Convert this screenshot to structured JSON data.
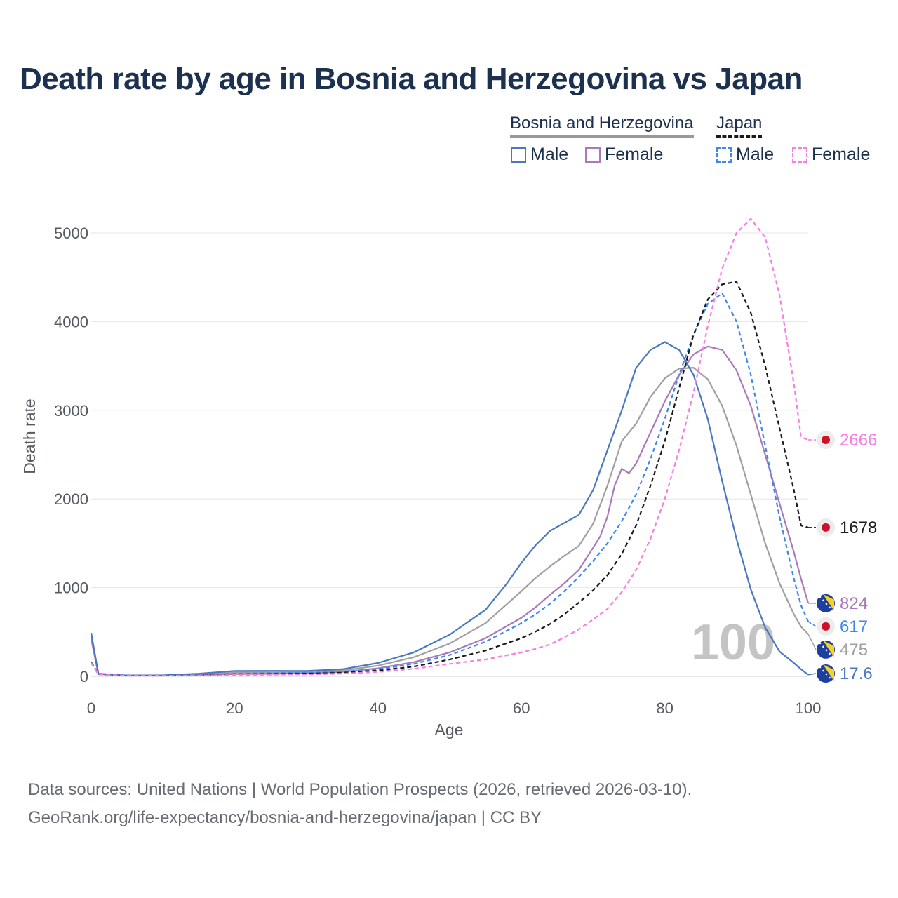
{
  "title": "Death rate by age in Bosnia and Herzegovina vs Japan",
  "legend": {
    "groups": [
      {
        "name": "Bosnia and Herzegovina",
        "color": "#888888",
        "style": "solid"
      },
      {
        "name": "Japan",
        "color": "#1a1a1a",
        "style": "dashed"
      }
    ],
    "items": [
      {
        "label": "Male",
        "color": "#4a79c0",
        "style": "solid"
      },
      {
        "label": "Female",
        "color": "#a97ab8",
        "style": "solid"
      },
      {
        "label": "Male",
        "color": "#3d88e8",
        "style": "dashed"
      },
      {
        "label": "Female",
        "color": "#f57ee8",
        "style": "dashed"
      }
    ]
  },
  "source": {
    "line1": "Data sources: United Nations | World Population Prospects (2026, retrieved 2026-03-10).",
    "line2": "GeoRank.org/life-expectancy/bosnia-and-herzegovina/japan | CC BY"
  },
  "chart_data": {
    "type": "line",
    "xlabel": "Age",
    "ylabel": "Death rate",
    "xlim": [
      0,
      100
    ],
    "ylim": [
      0,
      5000
    ],
    "x_ticks": [
      0,
      20,
      40,
      60,
      80,
      100
    ],
    "y_ticks": [
      0,
      1000,
      2000,
      3000,
      4000,
      5000
    ],
    "watermark": "100",
    "series": [
      {
        "name": "Bosnia and Herzegovina Male",
        "color": "#4a79c0",
        "dash": false,
        "flag": "ba",
        "end_label": "17.6",
        "points": [
          [
            0,
            490
          ],
          [
            1,
            30
          ],
          [
            5,
            10
          ],
          [
            10,
            12
          ],
          [
            15,
            30
          ],
          [
            20,
            60
          ],
          [
            25,
            62
          ],
          [
            30,
            60
          ],
          [
            35,
            80
          ],
          [
            40,
            150
          ],
          [
            45,
            270
          ],
          [
            50,
            470
          ],
          [
            55,
            750
          ],
          [
            58,
            1050
          ],
          [
            60,
            1280
          ],
          [
            62,
            1480
          ],
          [
            64,
            1640
          ],
          [
            66,
            1730
          ],
          [
            68,
            1820
          ],
          [
            70,
            2100
          ],
          [
            72,
            2550
          ],
          [
            74,
            3000
          ],
          [
            76,
            3480
          ],
          [
            78,
            3680
          ],
          [
            80,
            3770
          ],
          [
            82,
            3680
          ],
          [
            84,
            3400
          ],
          [
            86,
            2900
          ],
          [
            88,
            2200
          ],
          [
            90,
            1550
          ],
          [
            92,
            980
          ],
          [
            94,
            550
          ],
          [
            96,
            280
          ],
          [
            98,
            150
          ],
          [
            99,
            80
          ],
          [
            100,
            17.6
          ]
        ]
      },
      {
        "name": "Bosnia and Herzegovina Female",
        "color": "#a97ab8",
        "dash": false,
        "flag": "ba",
        "end_label": "824",
        "points": [
          [
            0,
            420
          ],
          [
            1,
            25
          ],
          [
            5,
            8
          ],
          [
            10,
            8
          ],
          [
            15,
            15
          ],
          [
            20,
            25
          ],
          [
            25,
            28
          ],
          [
            30,
            35
          ],
          [
            35,
            50
          ],
          [
            40,
            90
          ],
          [
            45,
            160
          ],
          [
            50,
            270
          ],
          [
            55,
            430
          ],
          [
            60,
            660
          ],
          [
            62,
            780
          ],
          [
            64,
            920
          ],
          [
            66,
            1050
          ],
          [
            68,
            1200
          ],
          [
            70,
            1450
          ],
          [
            71,
            1580
          ],
          [
            72,
            1800
          ],
          [
            73,
            2150
          ],
          [
            74,
            2340
          ],
          [
            75,
            2290
          ],
          [
            76,
            2400
          ],
          [
            78,
            2750
          ],
          [
            80,
            3100
          ],
          [
            82,
            3400
          ],
          [
            84,
            3630
          ],
          [
            86,
            3720
          ],
          [
            88,
            3680
          ],
          [
            90,
            3450
          ],
          [
            92,
            3050
          ],
          [
            94,
            2500
          ],
          [
            96,
            1950
          ],
          [
            98,
            1400
          ],
          [
            99,
            1100
          ],
          [
            100,
            824
          ]
        ]
      },
      {
        "name": "Bosnia and Herzegovina Total",
        "color": "#a0a0a0",
        "dash": false,
        "flag": "ba",
        "end_label": "475",
        "points": [
          [
            0,
            460
          ],
          [
            1,
            28
          ],
          [
            5,
            9
          ],
          [
            10,
            10
          ],
          [
            15,
            22
          ],
          [
            20,
            42
          ],
          [
            25,
            45
          ],
          [
            30,
            48
          ],
          [
            35,
            65
          ],
          [
            40,
            120
          ],
          [
            45,
            215
          ],
          [
            50,
            370
          ],
          [
            55,
            600
          ],
          [
            60,
            960
          ],
          [
            62,
            1110
          ],
          [
            64,
            1240
          ],
          [
            66,
            1360
          ],
          [
            68,
            1470
          ],
          [
            70,
            1720
          ],
          [
            72,
            2150
          ],
          [
            74,
            2650
          ],
          [
            76,
            2850
          ],
          [
            78,
            3150
          ],
          [
            80,
            3360
          ],
          [
            82,
            3470
          ],
          [
            84,
            3480
          ],
          [
            86,
            3350
          ],
          [
            88,
            3050
          ],
          [
            90,
            2600
          ],
          [
            92,
            2050
          ],
          [
            94,
            1500
          ],
          [
            96,
            1050
          ],
          [
            98,
            700
          ],
          [
            99,
            560
          ],
          [
            100,
            475
          ]
        ]
      },
      {
        "name": "Japan Male",
        "color": "#3d88e8",
        "dash": true,
        "flag": "jp",
        "end_label": "617",
        "points": [
          [
            0,
            160
          ],
          [
            1,
            25
          ],
          [
            5,
            10
          ],
          [
            10,
            10
          ],
          [
            15,
            15
          ],
          [
            20,
            30
          ],
          [
            25,
            35
          ],
          [
            30,
            40
          ],
          [
            35,
            50
          ],
          [
            40,
            80
          ],
          [
            45,
            140
          ],
          [
            50,
            240
          ],
          [
            55,
            390
          ],
          [
            60,
            600
          ],
          [
            62,
            700
          ],
          [
            64,
            820
          ],
          [
            66,
            960
          ],
          [
            68,
            1120
          ],
          [
            70,
            1300
          ],
          [
            72,
            1500
          ],
          [
            74,
            1750
          ],
          [
            76,
            2050
          ],
          [
            78,
            2450
          ],
          [
            80,
            2900
          ],
          [
            82,
            3400
          ],
          [
            84,
            3850
          ],
          [
            86,
            4200
          ],
          [
            88,
            4320
          ],
          [
            90,
            4000
          ],
          [
            92,
            3400
          ],
          [
            94,
            2600
          ],
          [
            96,
            1800
          ],
          [
            98,
            1100
          ],
          [
            99,
            800
          ],
          [
            100,
            617
          ]
        ]
      },
      {
        "name": "Japan Female",
        "color": "#f57ee8",
        "dash": true,
        "flag": "jp",
        "end_label": "2666",
        "points": [
          [
            0,
            150
          ],
          [
            1,
            22
          ],
          [
            5,
            8
          ],
          [
            10,
            8
          ],
          [
            15,
            10
          ],
          [
            20,
            15
          ],
          [
            25,
            18
          ],
          [
            30,
            22
          ],
          [
            35,
            30
          ],
          [
            40,
            50
          ],
          [
            45,
            85
          ],
          [
            50,
            140
          ],
          [
            55,
            190
          ],
          [
            60,
            270
          ],
          [
            62,
            310
          ],
          [
            64,
            360
          ],
          [
            66,
            440
          ],
          [
            68,
            530
          ],
          [
            70,
            640
          ],
          [
            72,
            760
          ],
          [
            74,
            950
          ],
          [
            76,
            1200
          ],
          [
            78,
            1550
          ],
          [
            80,
            2000
          ],
          [
            82,
            2550
          ],
          [
            84,
            3200
          ],
          [
            86,
            3950
          ],
          [
            88,
            4600
          ],
          [
            90,
            5000
          ],
          [
            92,
            5160
          ],
          [
            94,
            4950
          ],
          [
            96,
            4300
          ],
          [
            98,
            3300
          ],
          [
            99,
            2700
          ],
          [
            100,
            2666
          ]
        ]
      },
      {
        "name": "Japan Total",
        "color": "#1a1a1a",
        "dash": true,
        "flag": "jp",
        "end_label": "1678",
        "points": [
          [
            0,
            155
          ],
          [
            1,
            24
          ],
          [
            5,
            9
          ],
          [
            10,
            9
          ],
          [
            15,
            12
          ],
          [
            20,
            22
          ],
          [
            25,
            26
          ],
          [
            30,
            30
          ],
          [
            35,
            40
          ],
          [
            40,
            65
          ],
          [
            45,
            110
          ],
          [
            50,
            190
          ],
          [
            55,
            290
          ],
          [
            60,
            430
          ],
          [
            62,
            505
          ],
          [
            64,
            590
          ],
          [
            66,
            700
          ],
          [
            68,
            830
          ],
          [
            70,
            970
          ],
          [
            72,
            1140
          ],
          [
            74,
            1380
          ],
          [
            76,
            1700
          ],
          [
            78,
            2150
          ],
          [
            80,
            2650
          ],
          [
            82,
            3250
          ],
          [
            84,
            3850
          ],
          [
            86,
            4250
          ],
          [
            88,
            4420
          ],
          [
            90,
            4450
          ],
          [
            92,
            4100
          ],
          [
            94,
            3500
          ],
          [
            96,
            2800
          ],
          [
            98,
            2100
          ],
          [
            99,
            1700
          ],
          [
            100,
            1678
          ]
        ]
      }
    ]
  }
}
